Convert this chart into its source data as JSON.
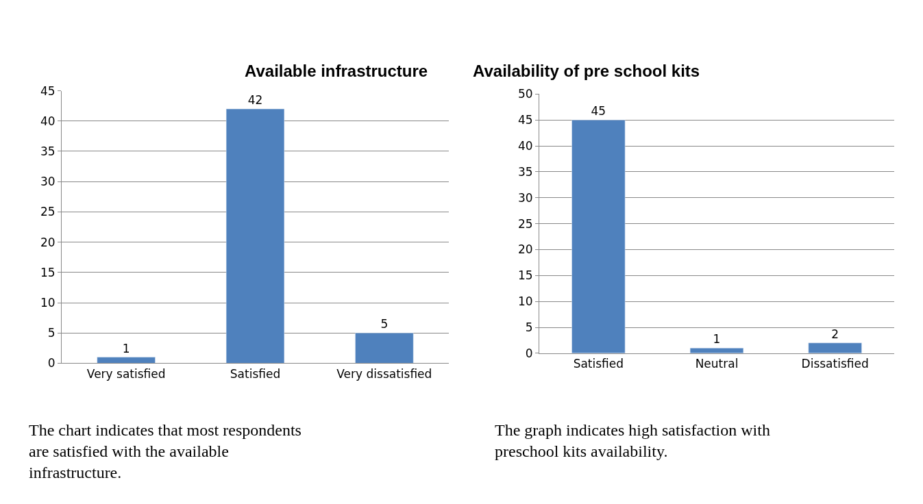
{
  "chart_data": [
    {
      "type": "bar",
      "title": "Available infrastructure",
      "categories": [
        "Very satisfied",
        "Satisfied",
        "Very dissatisfied"
      ],
      "values": [
        1,
        42,
        5
      ],
      "color": "#4f81bd",
      "ylim": [
        0,
        45
      ],
      "yticks": [
        0,
        5,
        10,
        15,
        20,
        25,
        30,
        35,
        40,
        45
      ],
      "grid": "y",
      "data_labels": true,
      "annotations": [
        "The chart indicates that most respondents are satisfied with the available infrastructure."
      ]
    },
    {
      "type": "bar",
      "title": "Availability of pre school kits",
      "categories": [
        "Satisfied",
        "Neutral",
        "Dissatisfied"
      ],
      "values": [
        45,
        1,
        2
      ],
      "color": "#4f81bd",
      "ylim": [
        0,
        50
      ],
      "yticks": [
        0,
        5,
        10,
        15,
        20,
        25,
        30,
        35,
        40,
        45,
        50
      ],
      "grid": "y",
      "data_labels": true,
      "annotations": [
        "The graph indicates high satisfaction with preschool kits availability."
      ]
    }
  ]
}
